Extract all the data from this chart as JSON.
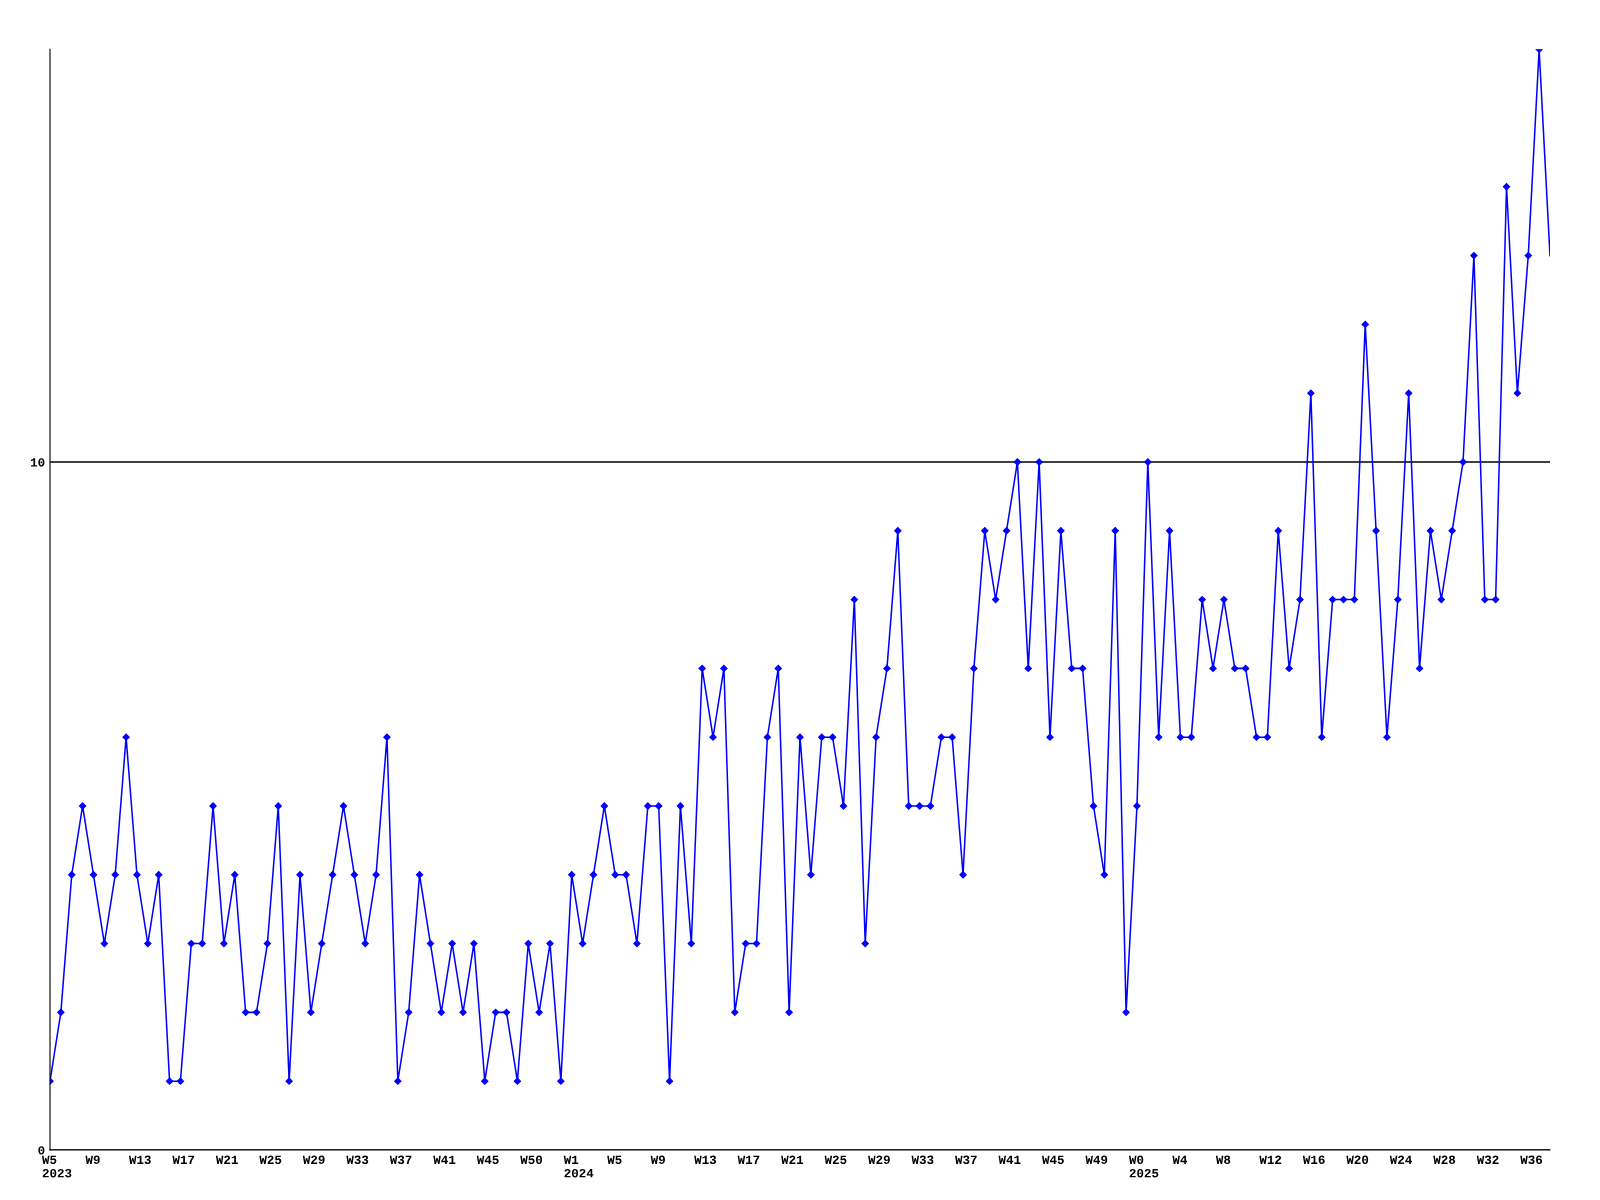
{
  "chart_data": {
    "type": "line",
    "categories": [
      "W5\n2023",
      null,
      null,
      null,
      "W9",
      null,
      null,
      null,
      "W13",
      null,
      null,
      null,
      "W17",
      null,
      null,
      null,
      "W21",
      null,
      null,
      null,
      "W25",
      null,
      null,
      null,
      "W29",
      null,
      null,
      null,
      "W33",
      null,
      null,
      null,
      "W37",
      null,
      null,
      null,
      "W41",
      null,
      null,
      null,
      "W45",
      null,
      null,
      null,
      "W50",
      null,
      null,
      null,
      "W1\n2024",
      null,
      null,
      null,
      "W5",
      null,
      null,
      null,
      "W9",
      null,
      null,
      null,
      "W13",
      null,
      null,
      null,
      "W17",
      null,
      null,
      null,
      "W21",
      null,
      null,
      null,
      "W25",
      null,
      null,
      null,
      "W29",
      null,
      null,
      null,
      "W33",
      null,
      null,
      null,
      "W37",
      null,
      null,
      null,
      "W41",
      null,
      null,
      null,
      "W45",
      null,
      null,
      null,
      "W49",
      null,
      null,
      null,
      "W0\n2025",
      null,
      null,
      null,
      "W4",
      null,
      null,
      null,
      "W8",
      null,
      null,
      null,
      "W12",
      null,
      null,
      null,
      "W16",
      null,
      null,
      null,
      "W20",
      null,
      null,
      null,
      "W24",
      null,
      null,
      null,
      "W28",
      null,
      null,
      null,
      "W32",
      null,
      null,
      null,
      "W36",
      null,
      null
    ],
    "series": [
      {
        "color": "#0000ff",
        "values": [
          1,
          2,
          4,
          5,
          4,
          3,
          4,
          6,
          4,
          3,
          4,
          1,
          1,
          3,
          3,
          5,
          3,
          4,
          2,
          2,
          3,
          5,
          1,
          4,
          2,
          3,
          4,
          5,
          4,
          3,
          4,
          6,
          1,
          2,
          4,
          3,
          2,
          3,
          2,
          3,
          1,
          2,
          2,
          1,
          3,
          2,
          3,
          1,
          4,
          3,
          4,
          5,
          4,
          4,
          3,
          5,
          5,
          1,
          5,
          3,
          7,
          6,
          7,
          2,
          3,
          3,
          6,
          7,
          2,
          6,
          4,
          6,
          6,
          5,
          8,
          3,
          6,
          7,
          9,
          5,
          5,
          5,
          6,
          6,
          4,
          7,
          9,
          8,
          9,
          10,
          7,
          10,
          6,
          9,
          7,
          7,
          5,
          4,
          9,
          2,
          5,
          10,
          6,
          9,
          6,
          6,
          8,
          7,
          8,
          7,
          7,
          6,
          6,
          9,
          7,
          8,
          11,
          6,
          8,
          8,
          8,
          12,
          9,
          6,
          8,
          11,
          7,
          9,
          8,
          9,
          10,
          13,
          8,
          8,
          14,
          11,
          13,
          16,
          13
        ]
      }
    ],
    "ylim": [
      0,
      16
    ],
    "yticks": [
      0,
      10
    ],
    "grid": "y",
    "marker": "diamond",
    "line_style": "solid"
  }
}
